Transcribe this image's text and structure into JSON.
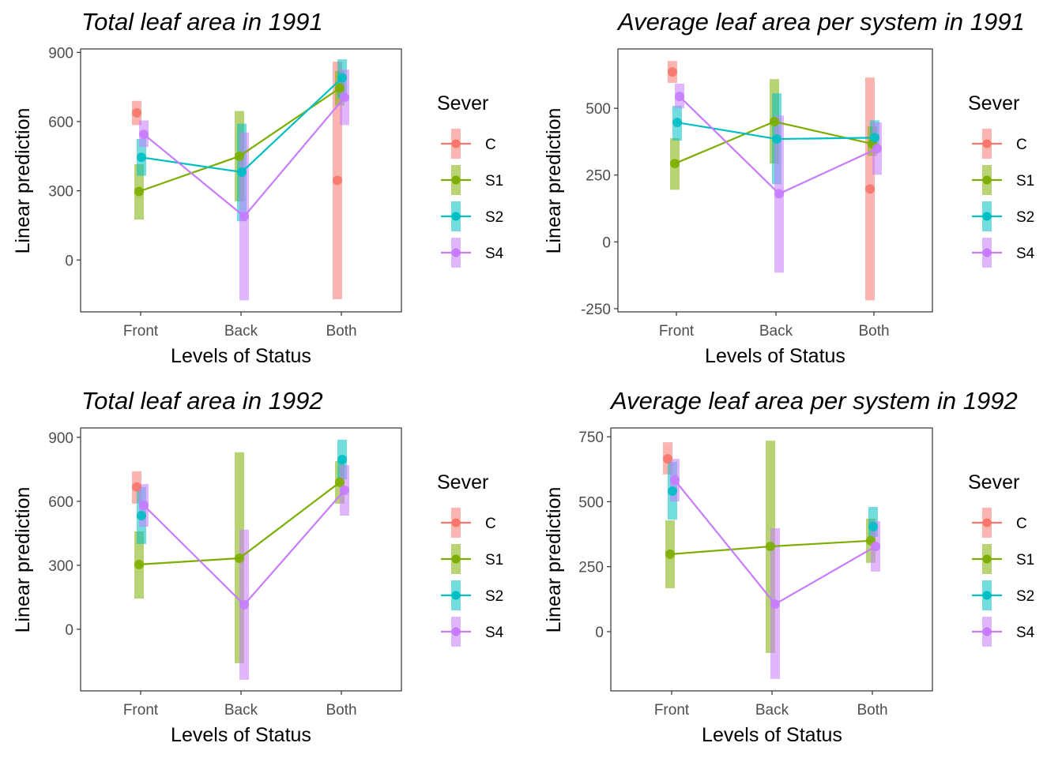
{
  "legend": {
    "title": "Sever",
    "items": [
      {
        "key": "C",
        "label": "C",
        "color": "#F8766D"
      },
      {
        "key": "S1",
        "label": "S1",
        "color": "#7CAE00"
      },
      {
        "key": "S2",
        "label": "S2",
        "color": "#00BFC4"
      },
      {
        "key": "S4",
        "label": "S4",
        "color": "#C77CFF"
      }
    ]
  },
  "chart_data": [
    {
      "type": "line",
      "title": "Total leaf area in 1991",
      "xlabel": "Levels of Status",
      "ylabel": "Linear prediction",
      "categories": [
        "Front",
        "Back",
        "Both"
      ],
      "yticks": [
        0,
        300,
        600,
        900
      ],
      "ylim": [
        -225,
        915
      ],
      "grid": false,
      "legend_position": "right",
      "series": [
        {
          "name": "C",
          "connected": false,
          "points": [
            {
              "x": "Front",
              "y": 638,
              "lo": 585,
              "hi": 690
            },
            {
              "x": "Both",
              "y": 345,
              "lo": -170,
              "hi": 860
            }
          ]
        },
        {
          "name": "S1",
          "connected": true,
          "points": [
            {
              "x": "Front",
              "y": 297,
              "lo": 175,
              "hi": 415
            },
            {
              "x": "Back",
              "y": 450,
              "lo": 254,
              "hi": 646
            },
            {
              "x": "Both",
              "y": 745,
              "lo": 670,
              "hi": 820
            }
          ]
        },
        {
          "name": "S2",
          "connected": true,
          "points": [
            {
              "x": "Front",
              "y": 445,
              "lo": 365,
              "hi": 525
            },
            {
              "x": "Back",
              "y": 381,
              "lo": 168,
              "hi": 591
            },
            {
              "x": "Both",
              "y": 790,
              "lo": 700,
              "hi": 870
            }
          ]
        },
        {
          "name": "S4",
          "connected": true,
          "points": [
            {
              "x": "Front",
              "y": 545,
              "lo": 490,
              "hi": 605
            },
            {
              "x": "Back",
              "y": 189,
              "lo": -175,
              "hi": 553
            },
            {
              "x": "Both",
              "y": 705,
              "lo": 585,
              "hi": 825
            }
          ]
        }
      ]
    },
    {
      "type": "line",
      "title": "Average leaf area per system in 1991",
      "xlabel": "Levels of Status",
      "ylabel": "Linear prediction",
      "categories": [
        "Front",
        "Back",
        "Both"
      ],
      "yticks": [
        -250,
        0,
        250,
        500
      ],
      "ylim": [
        -262,
        722
      ],
      "grid": false,
      "legend_position": "right",
      "series": [
        {
          "name": "C",
          "connected": false,
          "points": [
            {
              "x": "Front",
              "y": 636,
              "lo": 595,
              "hi": 677
            },
            {
              "x": "Both",
              "y": 198,
              "lo": -219,
              "hi": 615
            }
          ]
        },
        {
          "name": "S1",
          "connected": true,
          "points": [
            {
              "x": "Front",
              "y": 293,
              "lo": 195,
              "hi": 388
            },
            {
              "x": "Back",
              "y": 450,
              "lo": 293,
              "hi": 609
            },
            {
              "x": "Both",
              "y": 367,
              "lo": 322,
              "hi": 432
            }
          ]
        },
        {
          "name": "S2",
          "connected": true,
          "points": [
            {
              "x": "Front",
              "y": 447,
              "lo": 379,
              "hi": 509
            },
            {
              "x": "Back",
              "y": 385,
              "lo": 216,
              "hi": 556
            },
            {
              "x": "Both",
              "y": 390,
              "lo": 358,
              "hi": 455
            }
          ]
        },
        {
          "name": "S4",
          "connected": true,
          "points": [
            {
              "x": "Front",
              "y": 544,
              "lo": 500,
              "hi": 592
            },
            {
              "x": "Back",
              "y": 180,
              "lo": -115,
              "hi": 473
            },
            {
              "x": "Both",
              "y": 349,
              "lo": 251,
              "hi": 447
            }
          ]
        }
      ]
    },
    {
      "type": "line",
      "title": "Total leaf area in 1992",
      "xlabel": "Levels of Status",
      "ylabel": "Linear prediction",
      "categories": [
        "Front",
        "Back",
        "Both"
      ],
      "yticks": [
        0,
        300,
        600,
        900
      ],
      "ylim": [
        -289,
        944
      ],
      "grid": false,
      "legend_position": "right",
      "series": [
        {
          "name": "C",
          "connected": false,
          "points": [
            {
              "x": "Front",
              "y": 667,
              "lo": 589,
              "hi": 741
            }
          ]
        },
        {
          "name": "S1",
          "connected": true,
          "points": [
            {
              "x": "Front",
              "y": 304,
              "lo": 144,
              "hi": 459
            },
            {
              "x": "Back",
              "y": 333,
              "lo": -159,
              "hi": 830
            },
            {
              "x": "Both",
              "y": 689,
              "lo": 589,
              "hi": 789
            }
          ]
        },
        {
          "name": "S2",
          "connected": false,
          "points": [
            {
              "x": "Front",
              "y": 533,
              "lo": 400,
              "hi": 667
            },
            {
              "x": "Both",
              "y": 796,
              "lo": 704,
              "hi": 889
            }
          ]
        },
        {
          "name": "S4",
          "connected": true,
          "points": [
            {
              "x": "Front",
              "y": 581,
              "lo": 481,
              "hi": 681
            },
            {
              "x": "Back",
              "y": 115,
              "lo": -237,
              "hi": 467
            },
            {
              "x": "Both",
              "y": 652,
              "lo": 533,
              "hi": 770
            }
          ]
        }
      ]
    },
    {
      "type": "line",
      "title": "Average leaf area per system in 1992",
      "xlabel": "Levels of Status",
      "ylabel": "Linear prediction",
      "categories": [
        "Front",
        "Back",
        "Both"
      ],
      "yticks": [
        0,
        250,
        500,
        750
      ],
      "ylim": [
        -228,
        784
      ],
      "grid": false,
      "legend_position": "right",
      "series": [
        {
          "name": "C",
          "connected": false,
          "points": [
            {
              "x": "Front",
              "y": 665,
              "lo": 605,
              "hi": 729
            }
          ]
        },
        {
          "name": "S1",
          "connected": true,
          "points": [
            {
              "x": "Front",
              "y": 298,
              "lo": 167,
              "hi": 428
            },
            {
              "x": "Back",
              "y": 328,
              "lo": -82,
              "hi": 735
            },
            {
              "x": "Both",
              "y": 350,
              "lo": 265,
              "hi": 435
            }
          ]
        },
        {
          "name": "S2",
          "connected": false,
          "points": [
            {
              "x": "Front",
              "y": 541,
              "lo": 431,
              "hi": 653
            },
            {
              "x": "Both",
              "y": 404,
              "lo": 365,
              "hi": 480
            }
          ]
        },
        {
          "name": "S4",
          "connected": true,
          "points": [
            {
              "x": "Front",
              "y": 583,
              "lo": 501,
              "hi": 665
            },
            {
              "x": "Back",
              "y": 106,
              "lo": -182,
              "hi": 398
            },
            {
              "x": "Both",
              "y": 328,
              "lo": 231,
              "hi": 425
            }
          ]
        }
      ]
    }
  ]
}
